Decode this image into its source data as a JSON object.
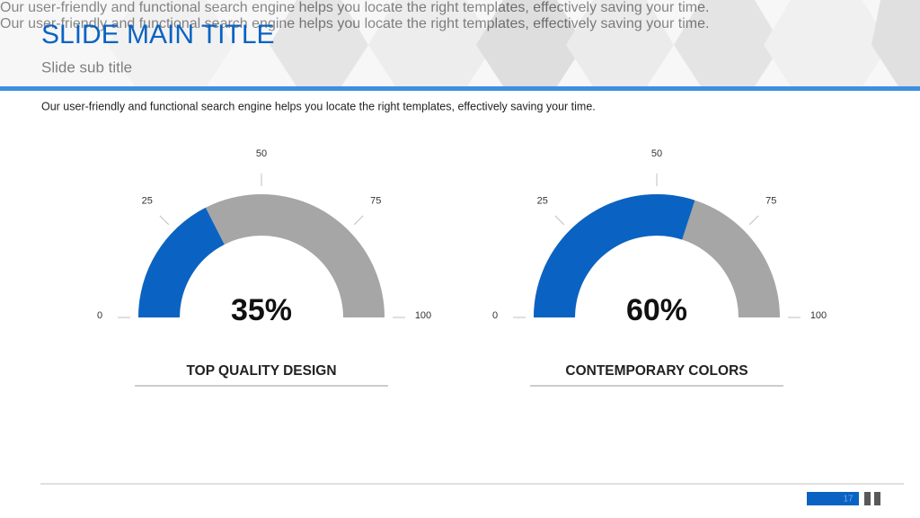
{
  "header": {
    "title": "SLIDE MAIN TITLE",
    "subtitle": "Slide sub title"
  },
  "intro": "Our user-friendly and functional search engine helps you locate the right templates, effectively saving your time.",
  "chart_data": [
    {
      "type": "gauge",
      "values": [
        35
      ],
      "value_labels": [
        "35%"
      ],
      "ylim": [
        0,
        100
      ],
      "yticks": [
        0,
        25,
        50,
        75,
        100
      ],
      "color": "#0a63c2",
      "track_color": "#a6a6a6",
      "title": "TOP QUALITY DESIGN",
      "description": "Our user-friendly and functional search engine helps you locate the right templates, effectively saving your time."
    },
    {
      "type": "gauge",
      "values": [
        60
      ],
      "value_labels": [
        "60%"
      ],
      "ylim": [
        0,
        100
      ],
      "yticks": [
        0,
        25,
        50,
        75,
        100
      ],
      "color": "#0a63c2",
      "track_color": "#a6a6a6",
      "title": "CONTEMPORARY COLORS",
      "description": "Our user-friendly and functional search engine helps you locate the right templates, effectively saving your time."
    }
  ],
  "page_number": "17"
}
